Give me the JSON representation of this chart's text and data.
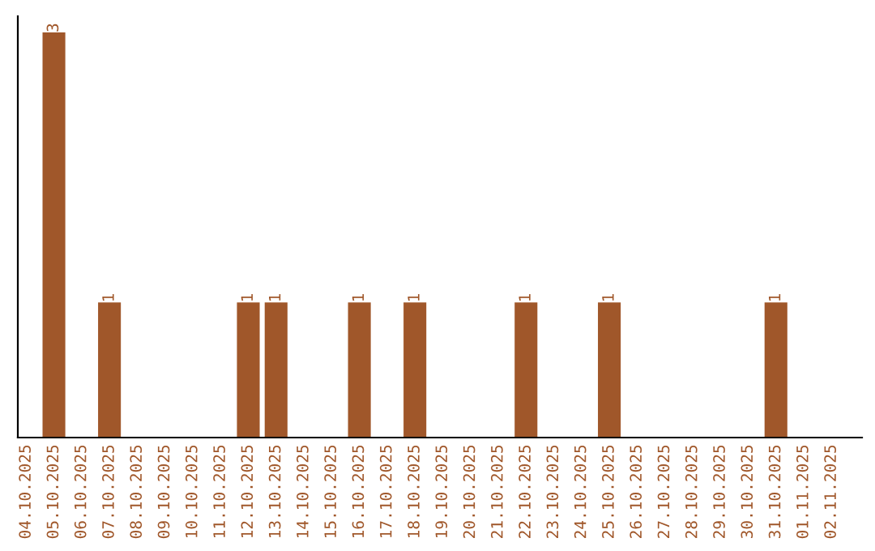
{
  "chart_data": {
    "type": "bar",
    "categories": [
      "04.10.2025",
      "05.10.2025",
      "06.10.2025",
      "07.10.2025",
      "08.10.2025",
      "09.10.2025",
      "10.10.2025",
      "11.10.2025",
      "12.10.2025",
      "13.10.2025",
      "14.10.2025",
      "15.10.2025",
      "16.10.2025",
      "17.10.2025",
      "18.10.2025",
      "19.10.2025",
      "20.10.2025",
      "21.10.2025",
      "22.10.2025",
      "23.10.2025",
      "24.10.2025",
      "25.10.2025",
      "26.10.2025",
      "27.10.2025",
      "28.10.2025",
      "29.10.2025",
      "30.10.2025",
      "31.10.2025",
      "01.11.2025",
      "02.11.2025"
    ],
    "values": [
      0,
      3,
      0,
      1,
      0,
      0,
      0,
      0,
      1,
      1,
      0,
      0,
      1,
      0,
      1,
      0,
      0,
      0,
      1,
      0,
      0,
      1,
      0,
      0,
      0,
      0,
      0,
      1,
      0,
      0
    ],
    "value_labels": [
      null,
      "3",
      null,
      "1",
      null,
      null,
      null,
      null,
      "1",
      "1",
      null,
      null,
      "1",
      null,
      "1",
      null,
      null,
      null,
      "1",
      null,
      null,
      "1",
      null,
      null,
      null,
      null,
      null,
      "1",
      null,
      null
    ],
    "color": "#a0572a",
    "tick_labels": "x",
    "grid": false,
    "legend": false
  }
}
